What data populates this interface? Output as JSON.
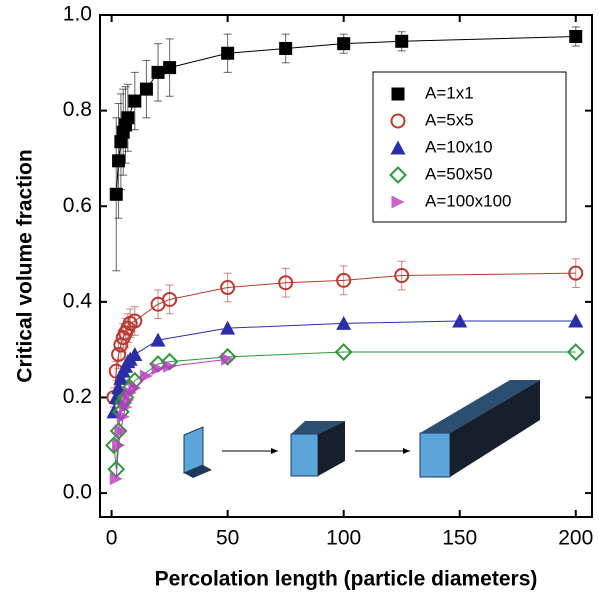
{
  "chart_data": {
    "type": "scatter",
    "x_label": "Percolation length (particle diameters)",
    "y_label": "Critical volume fraction",
    "xlim": [
      -5,
      207
    ],
    "ylim": [
      -0.05,
      1.0
    ],
    "xticks": [
      0,
      50,
      100,
      150,
      200
    ],
    "yticks": [
      {
        "value": 0,
        "label": "0.0"
      },
      0.2,
      0.4,
      0.6,
      0.8,
      {
        "value": 1,
        "label": "1.0"
      }
    ],
    "legend": "upper right",
    "series": [
      {
        "name": "A=1x1",
        "color": "#000000",
        "marker": "square",
        "x": [
          2,
          3,
          4,
          5,
          6,
          7,
          10,
          15,
          20,
          25,
          50,
          75,
          100,
          125,
          200
        ],
        "values": [
          0.625,
          0.695,
          0.735,
          0.755,
          0.77,
          0.785,
          0.82,
          0.845,
          0.88,
          0.89,
          0.92,
          0.93,
          0.94,
          0.945,
          0.955
        ],
        "errors": [
          0.16,
          0.12,
          0.1,
          0.09,
          0.08,
          0.07,
          0.06,
          0.06,
          0.06,
          0.06,
          0.04,
          0.03,
          0.02,
          0.02,
          0.02
        ]
      },
      {
        "name": "A=5x5",
        "color": "#b83a32",
        "marker": "circle",
        "x": [
          1,
          2,
          3,
          4,
          5,
          6,
          7,
          8,
          10,
          20,
          25,
          50,
          75,
          100,
          125,
          200
        ],
        "values": [
          0.2,
          0.255,
          0.29,
          0.31,
          0.325,
          0.335,
          0.345,
          0.355,
          0.36,
          0.395,
          0.405,
          0.43,
          0.44,
          0.445,
          0.455,
          0.46
        ],
        "errors": [
          0.02,
          0.02,
          0.03,
          0.03,
          0.03,
          0.03,
          0.03,
          0.03,
          0.03,
          0.03,
          0.03,
          0.03,
          0.03,
          0.03,
          0.03,
          0.03
        ]
      },
      {
        "name": "A=10x10",
        "color": "#2b2fa6",
        "marker": "triangle",
        "x": [
          1,
          2,
          3,
          4,
          5,
          6,
          7,
          8,
          10,
          20,
          50,
          100,
          150,
          200
        ],
        "values": [
          0.17,
          0.2,
          0.22,
          0.24,
          0.255,
          0.265,
          0.275,
          0.28,
          0.29,
          0.32,
          0.345,
          0.355,
          0.36,
          0.36
        ]
      },
      {
        "name": "A=50x50",
        "color": "#2e9a3a",
        "marker": "diamond",
        "x": [
          1,
          2,
          3,
          4,
          5,
          6,
          8,
          10,
          20,
          25,
          50,
          100,
          200
        ],
        "values": [
          0.1,
          0.05,
          0.13,
          0.17,
          0.19,
          0.2,
          0.22,
          0.235,
          0.27,
          0.275,
          0.285,
          0.295,
          0.295
        ]
      },
      {
        "name": "A=100x100",
        "color": "#b83cc0",
        "marker": "triangle-right",
        "x": [
          2,
          3,
          4,
          5,
          6,
          7,
          8,
          10,
          15,
          20,
          25,
          50
        ],
        "values": [
          0.03,
          0.1,
          0.13,
          0.16,
          0.18,
          0.195,
          0.21,
          0.22,
          0.245,
          0.26,
          0.265,
          0.28
        ]
      }
    ]
  }
}
